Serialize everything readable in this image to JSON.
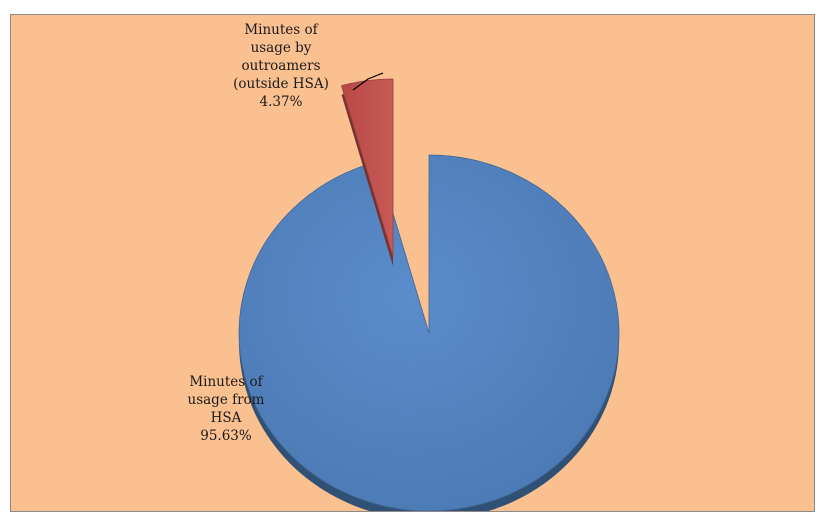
{
  "chart_data": {
    "type": "pie",
    "title": "",
    "exploded": true,
    "three_d": true,
    "background_color": "#fac090",
    "slices": [
      {
        "label_lines": [
          "Minutes of",
          "usage from",
          "HSA"
        ],
        "value": 95.63,
        "value_text": "95.63%",
        "color": "#4f81bd"
      },
      {
        "label_lines": [
          "Minutes of",
          "usage by",
          "outroamers",
          "(outside HSA)"
        ],
        "value": 4.37,
        "value_text": "4.37%",
        "color": "#c0504d"
      }
    ]
  }
}
